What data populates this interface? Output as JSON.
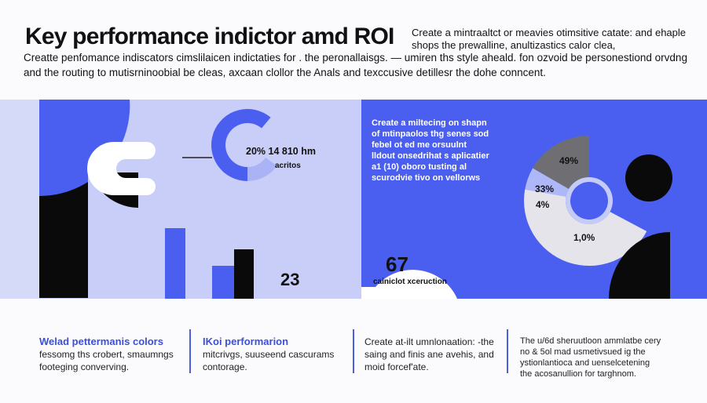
{
  "header": {
    "title": "Key performance indictor amd ROI",
    "side_text": "Create a mintraaltct or meavies otimsitive catate: and ehaple shops the prewalline, anultizastics calor clea,",
    "intro": "Creatte penfomance indiscators cimslilaicen indictaties for . the peronallaisgs. — umiren ths style aheald. fon ozvoid be personestiond orvdng and the routing to mutisrninoobial be cleas, axcaan clollor the Anals and texccusive detillesr the dohe conncent."
  },
  "left_panel": {
    "donut_label": "20% 14 810 hm",
    "donut_sublabel": "acritos",
    "stat_value": "23"
  },
  "right_panel": {
    "paragraph": "Create a miltecing on shapn of mtinpaolos thg senes sod febel ot ed me orsuulnt lldout onsedrihat s aplicatier a1 (10) oboro tusting al scurodvie tivo on vellorws",
    "stat_value": "67",
    "stat_label": "cainiclot xceruction",
    "donut_labels": [
      "49%",
      "33%",
      "4%",
      "1,0%"
    ]
  },
  "footer": {
    "columns": [
      {
        "heading": "Welad pettermanis colors",
        "body": "fessomg ths crobert, smaumngs footeging converving."
      },
      {
        "heading": "IKoi performarion",
        "body": "mitcrivgs, suuseend cascurams contorage."
      },
      {
        "heading": "",
        "body": "Create at-ilt umnlonaation: -the saing and finis ane avehis, and moid forcef'ate."
      },
      {
        "heading": "",
        "body": "The u/6d sheruutloon ammlatbe cery no & 5ol mad usmetivsued ig the ystionlantioca and uenselcetening the acosanullion for targhnom."
      }
    ]
  },
  "colors": {
    "primary_blue": "#4a5ff0",
    "lavender": "#c5cbf7",
    "black": "#0a0a0a",
    "gray": "#6f6f73",
    "light_gray": "#e4e4ea"
  }
}
